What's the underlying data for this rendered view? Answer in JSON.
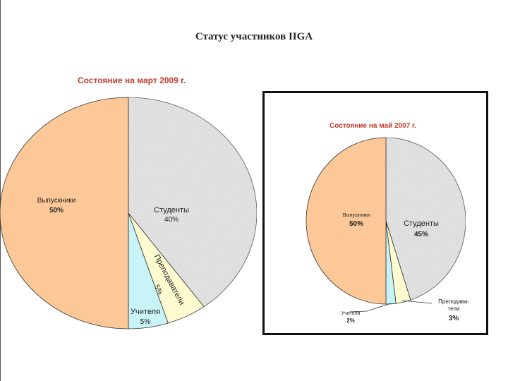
{
  "title": "Статус участников IIGA",
  "colors": {
    "grads": "#fdc897",
    "students": "#e6e6e6",
    "teachers": "#c8f4f8",
    "lecturers": "#fdfbcf",
    "subtitle": "#c0392b"
  },
  "chart_data": [
    {
      "type": "pie",
      "title": "Состояние на март 2009  г.",
      "slices": [
        {
          "name": "Студенты",
          "value": 40,
          "label": "40%"
        },
        {
          "name": "Преподаватели",
          "value": 5,
          "label": "5%"
        },
        {
          "name": "Учителя",
          "value": 5,
          "label": "5%"
        },
        {
          "name": "Выпускники",
          "value": 50,
          "label": "50%"
        }
      ]
    },
    {
      "type": "pie",
      "title": "Состояние на май 2007 г.",
      "slices": [
        {
          "name": "Студенты",
          "value": 45,
          "label": "45%"
        },
        {
          "name": "Преподава-\nтели",
          "value": 3,
          "label": "3%"
        },
        {
          "name": "Учителя",
          "value": 2,
          "label": "2%"
        },
        {
          "name": "Выпускники",
          "value": 50,
          "label": "50%"
        }
      ]
    }
  ]
}
